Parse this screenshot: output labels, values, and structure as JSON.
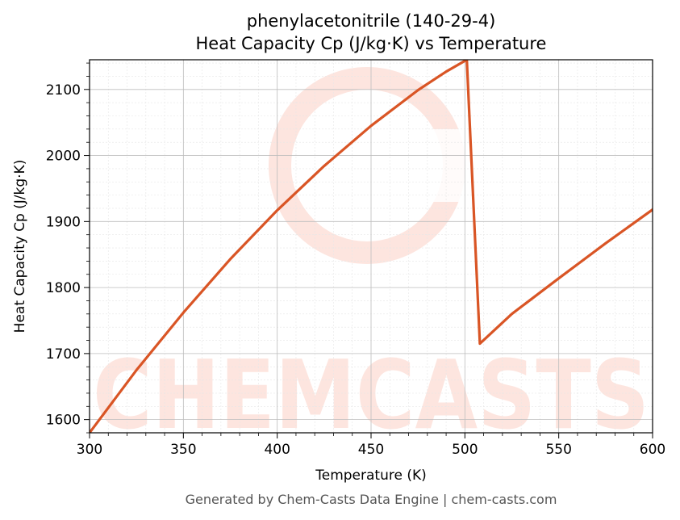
{
  "chart_data": {
    "type": "line",
    "title": "phenylacetonitrile (140-29-4)",
    "subtitle": "Heat Capacity Cp (J/kg·K) vs Temperature",
    "xlabel": "Temperature (K)",
    "ylabel": "Heat Capacity Cp (J/kg·K)",
    "xlim": [
      300,
      600
    ],
    "ylim": [
      1580,
      2145
    ],
    "x_ticks": [
      300,
      350,
      400,
      450,
      500,
      550,
      600
    ],
    "y_ticks": [
      1600,
      1700,
      1800,
      1900,
      2000,
      2100
    ],
    "grid": true,
    "line_color": "#d95525",
    "series": [
      {
        "x": [
          300,
          325,
          350,
          375,
          400,
          425,
          450,
          475,
          490,
          501,
          508,
          525,
          550,
          575,
          600
        ],
        "values": [
          1580,
          1675,
          1762,
          1843,
          1917,
          1984,
          2045,
          2099,
          2127,
          2145,
          1715,
          1760,
          1814,
          1867,
          1918
        ]
      }
    ]
  },
  "watermark": {
    "text": "CHEMCASTS",
    "color": "#fde3dc"
  },
  "footer": "Generated by Chem-Casts Data Engine | chem-casts.com"
}
